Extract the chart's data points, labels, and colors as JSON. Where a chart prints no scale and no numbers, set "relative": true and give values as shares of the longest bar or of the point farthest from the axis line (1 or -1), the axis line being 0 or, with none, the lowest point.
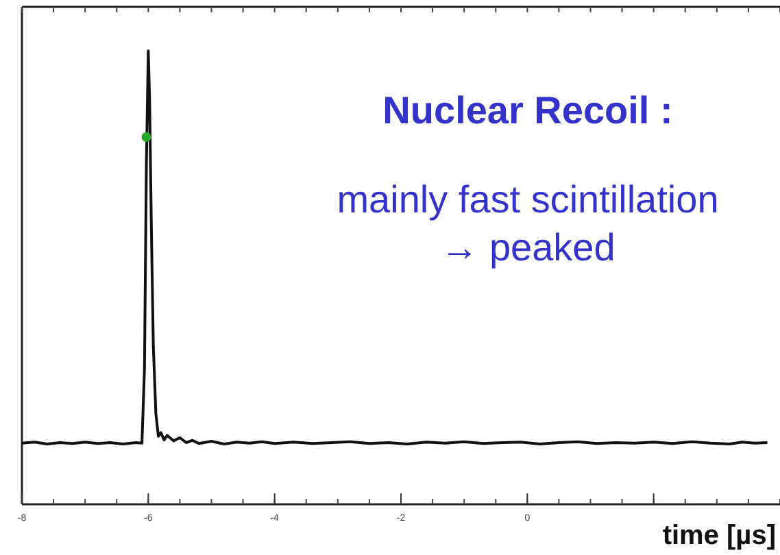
{
  "chart_data": {
    "type": "line",
    "relative": true,
    "xlabel": "time [µs]",
    "xlim": [
      -8,
      4
    ],
    "xticks": [
      -8,
      -6,
      -4,
      -2,
      0,
      {
        "value": 2,
        "label": null
      }
    ],
    "annotations": [
      "Nuclear Recoil :",
      "mainly fast scintillation",
      "→ peaked"
    ],
    "series": [
      {
        "color": "#111111",
        "x": [
          -8,
          -7.8,
          -7.6,
          -7.4,
          -7.2,
          -7,
          -6.8,
          -6.6,
          -6.4,
          -6.2,
          -6.1,
          -6.06,
          -6.03,
          -6.0,
          -5.98,
          -5.95,
          -5.92,
          -5.88,
          -5.84,
          -5.8,
          -5.75,
          -5.7,
          -5.6,
          -5.5,
          -5.4,
          -5.3,
          -5.2,
          -5,
          -4.8,
          -4.6,
          -4.4,
          -4.2,
          -4,
          -3.7,
          -3.4,
          -3.1,
          -2.8,
          -2.5,
          -2.2,
          -1.9,
          -1.6,
          -1.3,
          -1,
          -0.7,
          -0.4,
          -0.1,
          0.2,
          0.5,
          0.8,
          1.1,
          1.4,
          1.7,
          2,
          2.3,
          2.6,
          2.9,
          3.2,
          3.4,
          3.6,
          3.8
        ],
        "values": [
          0.135,
          0.137,
          0.133,
          0.136,
          0.134,
          0.137,
          0.134,
          0.136,
          0.133,
          0.136,
          0.135,
          0.3,
          0.75,
          1,
          0.9,
          0.6,
          0.35,
          0.2,
          0.15,
          0.158,
          0.142,
          0.152,
          0.14,
          0.147,
          0.136,
          0.141,
          0.134,
          0.139,
          0.133,
          0.137,
          0.135,
          0.138,
          0.134,
          0.137,
          0.134,
          0.136,
          0.138,
          0.134,
          0.136,
          0.133,
          0.137,
          0.135,
          0.138,
          0.134,
          0.136,
          0.137,
          0.133,
          0.136,
          0.138,
          0.134,
          0.136,
          0.135,
          0.137,
          0.134,
          0.138,
          0.135,
          0.133,
          0.137,
          0.135,
          0.136
        ]
      },
      {
        "type": "scatter",
        "color": "#22aa22",
        "marker": "circle",
        "x": [
          -6.03
        ],
        "values": [
          0.81
        ]
      }
    ]
  }
}
